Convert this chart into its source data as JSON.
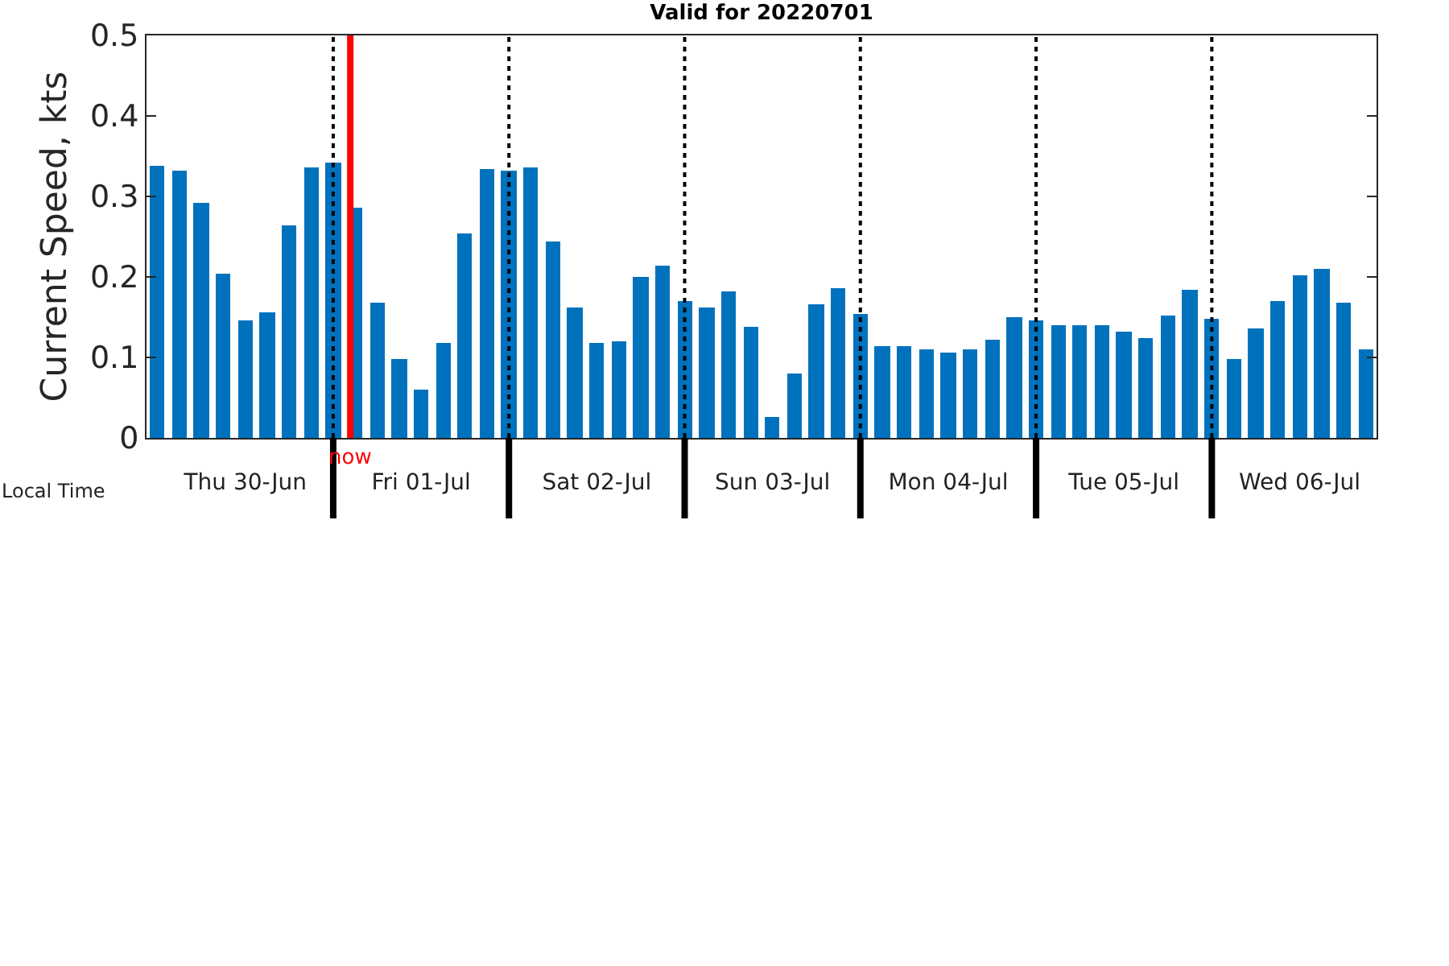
{
  "chart_data": {
    "type": "bar",
    "title": "Valid for 20220701",
    "xlabel": "Local Time",
    "ylabel": "Current Speed, kts",
    "x": [
      "2022-06-30T00:00",
      "2022-06-30T03:00",
      "2022-06-30T06:00",
      "2022-06-30T09:00",
      "2022-06-30T12:00",
      "2022-06-30T15:00",
      "2022-06-30T18:00",
      "2022-06-30T21:00",
      "2022-07-01T00:00",
      "2022-07-01T03:00",
      "2022-07-01T06:00",
      "2022-07-01T09:00",
      "2022-07-01T12:00",
      "2022-07-01T15:00",
      "2022-07-01T18:00",
      "2022-07-01T21:00",
      "2022-07-02T00:00",
      "2022-07-02T03:00",
      "2022-07-02T06:00",
      "2022-07-02T09:00",
      "2022-07-02T12:00",
      "2022-07-02T15:00",
      "2022-07-02T18:00",
      "2022-07-02T21:00",
      "2022-07-03T00:00",
      "2022-07-03T03:00",
      "2022-07-03T06:00",
      "2022-07-03T09:00",
      "2022-07-03T12:00",
      "2022-07-03T15:00",
      "2022-07-03T18:00",
      "2022-07-03T21:00",
      "2022-07-04T00:00",
      "2022-07-04T03:00",
      "2022-07-04T06:00",
      "2022-07-04T09:00",
      "2022-07-04T12:00",
      "2022-07-04T15:00",
      "2022-07-04T18:00",
      "2022-07-04T21:00",
      "2022-07-05T00:00",
      "2022-07-05T03:00",
      "2022-07-05T06:00",
      "2022-07-05T09:00",
      "2022-07-05T12:00",
      "2022-07-05T15:00",
      "2022-07-05T18:00",
      "2022-07-05T21:00",
      "2022-07-06T00:00",
      "2022-07-06T03:00",
      "2022-07-06T06:00",
      "2022-07-06T09:00",
      "2022-07-06T12:00",
      "2022-07-06T15:00",
      "2022-07-06T18:00",
      "2022-07-06T21:00"
    ],
    "values": [
      0.339,
      0.333,
      0.292,
      0.205,
      0.146,
      0.156,
      0.264,
      0.337,
      0.343,
      0.286,
      0.168,
      0.099,
      0.061,
      0.118,
      0.254,
      0.335,
      0.333,
      0.337,
      0.244,
      0.162,
      0.118,
      0.12,
      0.201,
      0.215,
      0.171,
      0.162,
      0.183,
      0.138,
      0.026,
      0.081,
      0.166,
      0.187,
      0.154,
      0.114,
      0.114,
      0.11,
      0.106,
      0.11,
      0.122,
      0.15,
      0.146,
      0.14,
      0.14,
      0.14,
      0.132,
      0.124,
      0.152,
      0.185,
      0.148,
      0.099,
      0.136,
      0.171,
      0.203,
      0.211,
      0.168,
      0.11
    ],
    "color": "#0072bd",
    "xlim": [
      "2022-06-29T22:30",
      "2022-07-06T22:30"
    ],
    "xticks": [
      {
        "value": "2022-06-30T12:00",
        "label": "Thu 30-Jun"
      },
      {
        "value": "2022-07-01T00:00",
        "label": null
      },
      {
        "value": "2022-07-01T12:00",
        "label": "Fri 01-Jul"
      },
      {
        "value": "2022-07-02T00:00",
        "label": null
      },
      {
        "value": "2022-07-02T12:00",
        "label": "Sat 02-Jul"
      },
      {
        "value": "2022-07-03T00:00",
        "label": null
      },
      {
        "value": "2022-07-03T12:00",
        "label": "Sun 03-Jul"
      },
      {
        "value": "2022-07-04T00:00",
        "label": null
      },
      {
        "value": "2022-07-04T12:00",
        "label": "Mon 04-Jul"
      },
      {
        "value": "2022-07-05T00:00",
        "label": null
      },
      {
        "value": "2022-07-05T12:00",
        "label": "Tue 05-Jul"
      },
      {
        "value": "2022-07-06T00:00",
        "label": null
      },
      {
        "value": "2022-07-06T12:00",
        "label": "Wed 06-Jul"
      }
    ],
    "ylim": [
      0,
      0.5
    ],
    "yticks": [
      0,
      0.1,
      0.2,
      0.3,
      0.4,
      0.5
    ],
    "ref_lines": [
      {
        "axis": "x",
        "value": "2022-07-01T00:00",
        "color": "#000000",
        "line_style": "dotted"
      },
      {
        "axis": "x",
        "value": "2022-07-02T00:00",
        "color": "#000000",
        "line_style": "dotted"
      },
      {
        "axis": "x",
        "value": "2022-07-03T00:00",
        "color": "#000000",
        "line_style": "dotted"
      },
      {
        "axis": "x",
        "value": "2022-07-04T00:00",
        "color": "#000000",
        "line_style": "dotted"
      },
      {
        "axis": "x",
        "value": "2022-07-05T00:00",
        "color": "#000000",
        "line_style": "dotted"
      },
      {
        "axis": "x",
        "value": "2022-07-06T00:00",
        "color": "#000000",
        "line_style": "dotted"
      },
      {
        "axis": "x",
        "value": "2022-07-01T02:20",
        "label": "now",
        "color": "#ff0000",
        "line_style": "solid"
      }
    ]
  }
}
